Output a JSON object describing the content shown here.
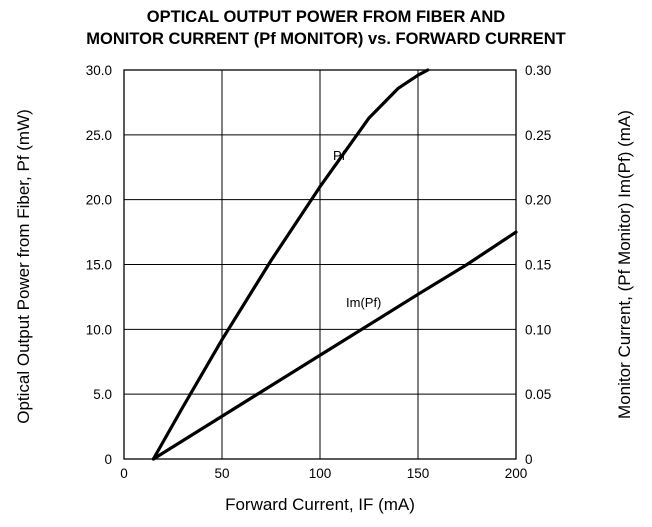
{
  "chart_data": {
    "type": "line",
    "title_line1": "OPTICAL OUTPUT POWER FROM FIBER AND",
    "title_line2": "MONITOR CURRENT (Pf MONITOR) vs. FORWARD CURRENT",
    "xlabel": "Forward Current, IF  (mA)",
    "ylabel": "Optical Output Power from Fiber, Pf (mW)",
    "y2label": "Monitor Current, (Pf Monitor) Im(Pf) (mA)",
    "xlim": [
      0,
      200
    ],
    "ylim": [
      0,
      30
    ],
    "y2lim": [
      0,
      0.3
    ],
    "x_ticks": [
      "0",
      "50",
      "100",
      "150",
      "200"
    ],
    "y_ticks": [
      "0",
      "5.0",
      "10.0",
      "15.0",
      "20.0",
      "25.0",
      "30.0"
    ],
    "y2_ticks": [
      "0",
      "0.05",
      "0.10",
      "0.15",
      "0.20",
      "0.25",
      "0.30"
    ],
    "grid": true,
    "series": [
      {
        "name": "Pf",
        "axis": "left",
        "x": [
          15,
          30,
          50,
          75,
          100,
          125,
          140,
          150,
          155
        ],
        "y": [
          0,
          4.0,
          9.2,
          15.3,
          21.0,
          26.3,
          28.6,
          29.6,
          30.0
        ]
      },
      {
        "name": "Im(Pf)",
        "axis": "right",
        "x": [
          15,
          50,
          100,
          150,
          175,
          200
        ],
        "y": [
          0,
          0.033,
          0.08,
          0.127,
          0.15,
          0.175
        ]
      }
    ],
    "annotations": [
      {
        "text": "Pf",
        "series": "Pf"
      },
      {
        "text": "Im(Pf)",
        "series": "Im(Pf)"
      }
    ]
  }
}
